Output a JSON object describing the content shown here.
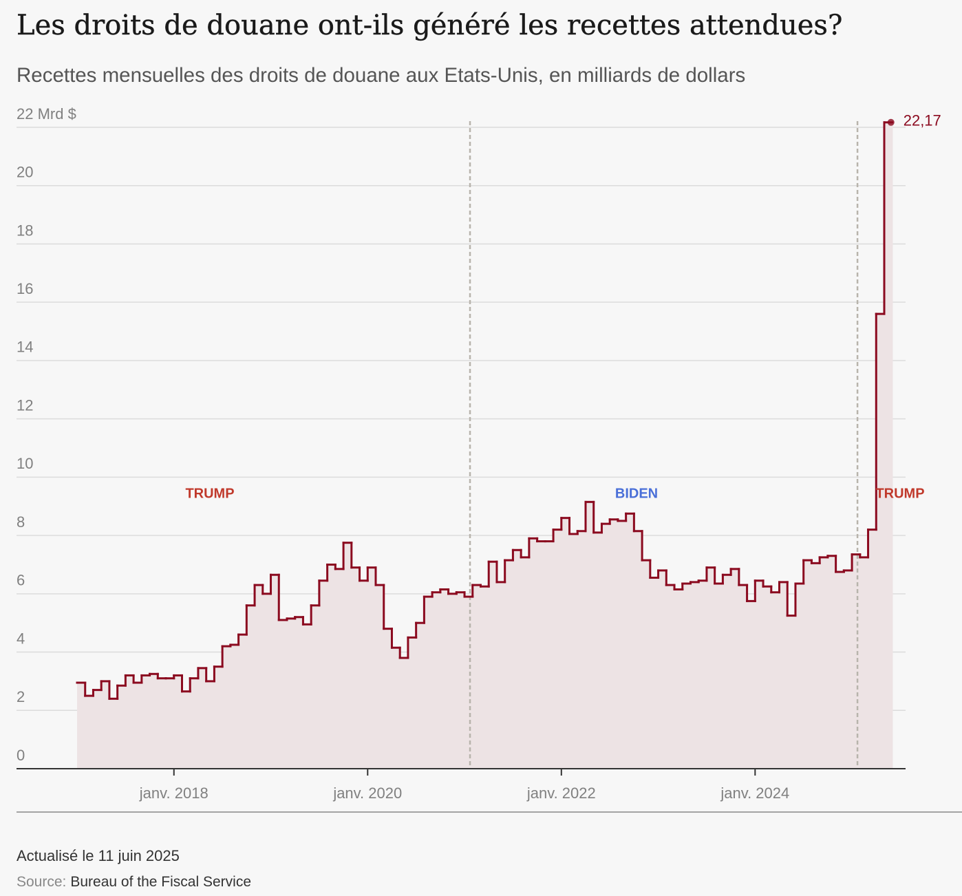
{
  "chart_data": {
    "type": "step-area",
    "title": "Les droits de douane ont-ils généré les recettes attendues?",
    "subtitle": "Recettes mensuelles des droits de douane aux Etats-Unis, en milliards de dollars",
    "x": [
      "2017-01",
      "2017-02",
      "2017-03",
      "2017-04",
      "2017-05",
      "2017-06",
      "2017-07",
      "2017-08",
      "2017-09",
      "2017-10",
      "2017-11",
      "2017-12",
      "2018-01",
      "2018-02",
      "2018-03",
      "2018-04",
      "2018-05",
      "2018-06",
      "2018-07",
      "2018-08",
      "2018-09",
      "2018-10",
      "2018-11",
      "2018-12",
      "2019-01",
      "2019-02",
      "2019-03",
      "2019-04",
      "2019-05",
      "2019-06",
      "2019-07",
      "2019-08",
      "2019-09",
      "2019-10",
      "2019-11",
      "2019-12",
      "2020-01",
      "2020-02",
      "2020-03",
      "2020-04",
      "2020-05",
      "2020-06",
      "2020-07",
      "2020-08",
      "2020-09",
      "2020-10",
      "2020-11",
      "2020-12",
      "2021-01",
      "2021-02",
      "2021-03",
      "2021-04",
      "2021-05",
      "2021-06",
      "2021-07",
      "2021-08",
      "2021-09",
      "2021-10",
      "2021-11",
      "2021-12",
      "2022-01",
      "2022-02",
      "2022-03",
      "2022-04",
      "2022-05",
      "2022-06",
      "2022-07",
      "2022-08",
      "2022-09",
      "2022-10",
      "2022-11",
      "2022-12",
      "2023-01",
      "2023-02",
      "2023-03",
      "2023-04",
      "2023-05",
      "2023-06",
      "2023-07",
      "2023-08",
      "2023-09",
      "2023-10",
      "2023-11",
      "2023-12",
      "2024-01",
      "2024-02",
      "2024-03",
      "2024-04",
      "2024-05",
      "2024-06",
      "2024-07",
      "2024-08",
      "2024-09",
      "2024-10",
      "2024-11",
      "2024-12",
      "2025-01",
      "2025-02",
      "2025-03",
      "2025-04",
      "2025-05"
    ],
    "values": [
      2.95,
      2.5,
      2.7,
      3.0,
      2.4,
      2.85,
      3.2,
      2.95,
      3.2,
      3.25,
      3.1,
      3.1,
      3.2,
      2.65,
      3.1,
      3.45,
      3.0,
      3.5,
      4.2,
      4.25,
      4.6,
      5.6,
      6.3,
      6.0,
      6.65,
      5.1,
      5.15,
      5.2,
      4.95,
      5.6,
      6.45,
      7.0,
      6.85,
      7.75,
      6.9,
      6.45,
      6.9,
      6.3,
      4.8,
      4.15,
      3.8,
      4.5,
      5.0,
      5.9,
      6.05,
      6.15,
      6.0,
      6.05,
      5.9,
      6.3,
      6.25,
      7.1,
      6.4,
      7.15,
      7.5,
      7.25,
      7.9,
      7.8,
      7.8,
      8.2,
      8.6,
      8.05,
      8.15,
      9.15,
      8.1,
      8.4,
      8.55,
      8.5,
      8.75,
      8.15,
      7.15,
      6.55,
      6.8,
      6.3,
      6.15,
      6.35,
      6.4,
      6.45,
      6.9,
      6.35,
      6.65,
      6.85,
      6.3,
      5.75,
      6.45,
      6.25,
      6.05,
      6.4,
      5.25,
      6.35,
      7.15,
      7.05,
      7.25,
      7.3,
      6.75,
      6.8,
      7.35,
      7.25,
      8.2,
      15.6,
      22.17
    ],
    "value_labels": [
      null,
      null,
      null,
      null,
      null,
      null,
      null,
      null,
      null,
      null,
      null,
      null,
      null,
      null,
      null,
      null,
      null,
      null,
      null,
      null,
      null,
      null,
      null,
      null,
      null,
      null,
      null,
      null,
      null,
      null,
      null,
      null,
      null,
      null,
      null,
      null,
      null,
      null,
      null,
      null,
      null,
      null,
      null,
      null,
      null,
      null,
      null,
      null,
      null,
      null,
      null,
      null,
      null,
      null,
      null,
      null,
      null,
      null,
      null,
      null,
      null,
      null,
      null,
      null,
      null,
      null,
      null,
      null,
      null,
      null,
      null,
      null,
      null,
      null,
      null,
      null,
      null,
      null,
      null,
      null,
      null,
      null,
      null,
      null,
      null,
      null,
      null,
      null,
      null,
      null,
      null,
      null,
      null,
      null,
      null,
      null,
      null,
      null,
      null,
      null,
      "22,17"
    ],
    "color": "#8b0a1f",
    "area_color": "#ede3e4",
    "ylim": [
      0,
      22
    ],
    "yticks": [
      0,
      2,
      4,
      6,
      8,
      10,
      12,
      14,
      16,
      18,
      20,
      {
        "value": 22,
        "label": "22 Mrd $"
      }
    ],
    "xticks": [
      {
        "value": "2018-01",
        "label": "janv. 2018"
      },
      {
        "value": "2020-01",
        "label": "janv. 2020"
      },
      {
        "value": "2022-01",
        "label": "janv. 2022"
      },
      {
        "value": "2024-01",
        "label": "janv. 2024"
      }
    ],
    "grid": true,
    "periods": [
      {
        "label": "TRUMP",
        "start": "2017-01",
        "color": "#c0392b"
      },
      {
        "label": "BIDEN",
        "start": "2021-01",
        "color": "#4a6fd8"
      },
      {
        "label": "TRUMP",
        "start": "2025-01",
        "color": "#c0392b"
      }
    ]
  },
  "footer": {
    "updated": "Actualisé le 11 juin 2025",
    "source_label": "Source:",
    "source": "Bureau of the Fiscal Service"
  }
}
